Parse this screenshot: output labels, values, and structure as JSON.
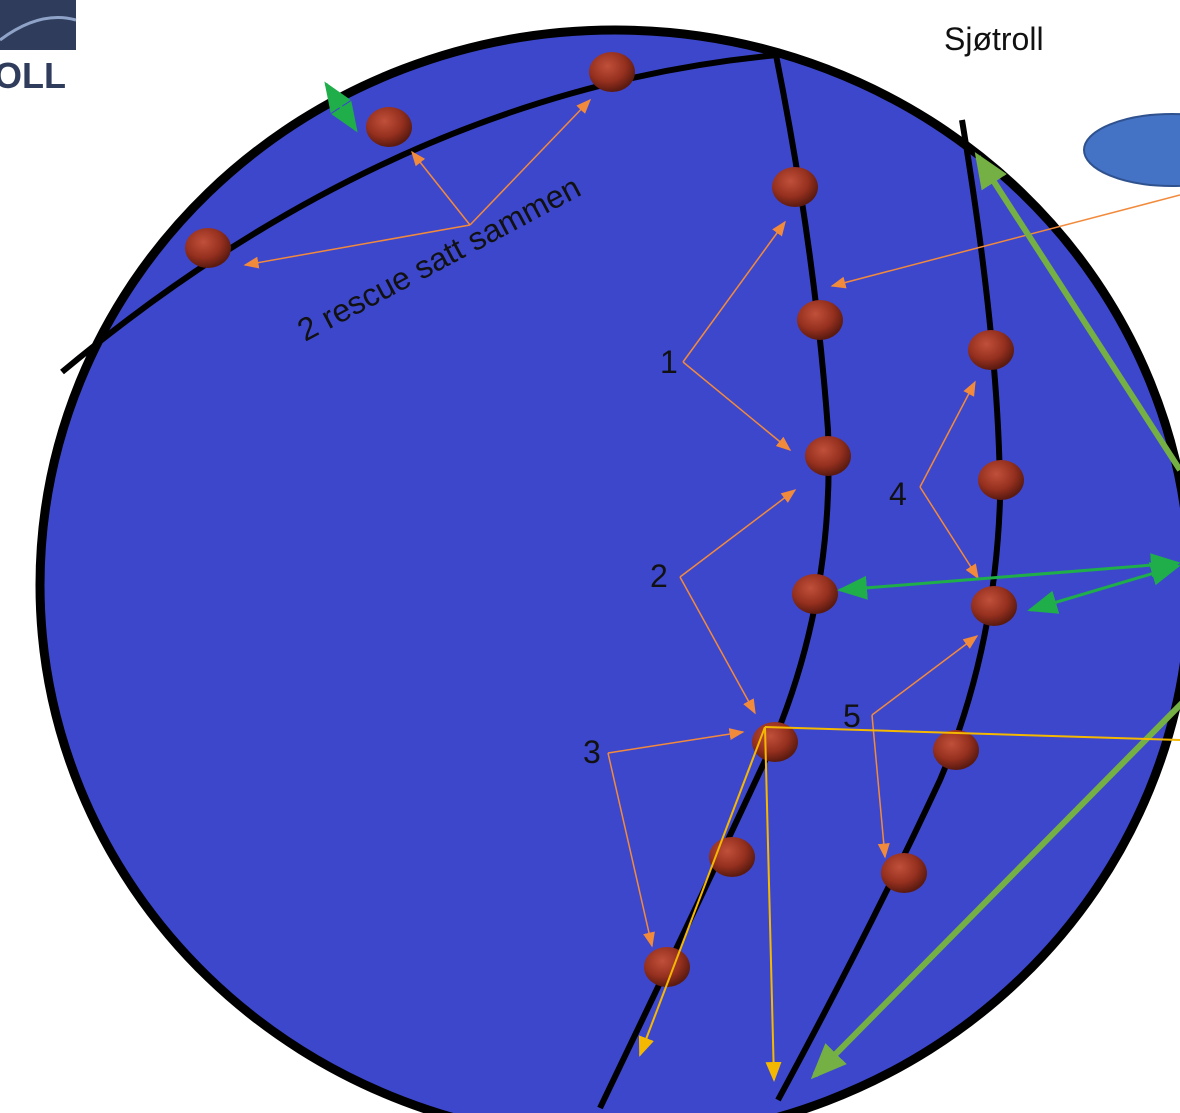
{
  "logo": {
    "text": "OLL"
  },
  "caption": "Sjøtroll",
  "top_group_label": "2 rescue satt sammen",
  "group_labels": [
    "1",
    "2",
    "3",
    "4",
    "5"
  ]
}
